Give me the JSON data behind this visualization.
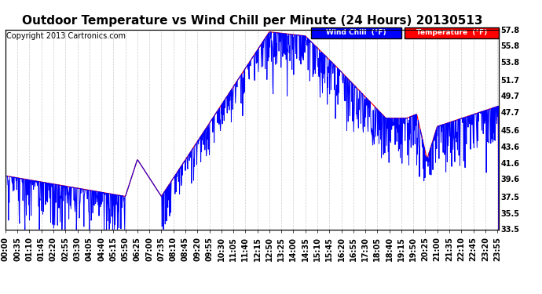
{
  "title": "Outdoor Temperature vs Wind Chill per Minute (24 Hours) 20130513",
  "copyright": "Copyright 2013 Cartronics.com",
  "ylabel_right_ticks": [
    57.8,
    55.8,
    53.8,
    51.7,
    49.7,
    47.7,
    45.6,
    43.6,
    41.6,
    39.6,
    37.5,
    35.5,
    33.5
  ],
  "ylim": [
    33.5,
    57.8
  ],
  "bg_color": "#ffffff",
  "grid_color": "#cccccc",
  "temp_color": "#ff0000",
  "windchill_color": "#0000ff",
  "legend_wind_bg": "#0000ff",
  "legend_temp_bg": "#ff0000",
  "title_fontsize": 11,
  "copyright_fontsize": 7,
  "tick_fontsize": 7,
  "x_tick_interval": 35
}
